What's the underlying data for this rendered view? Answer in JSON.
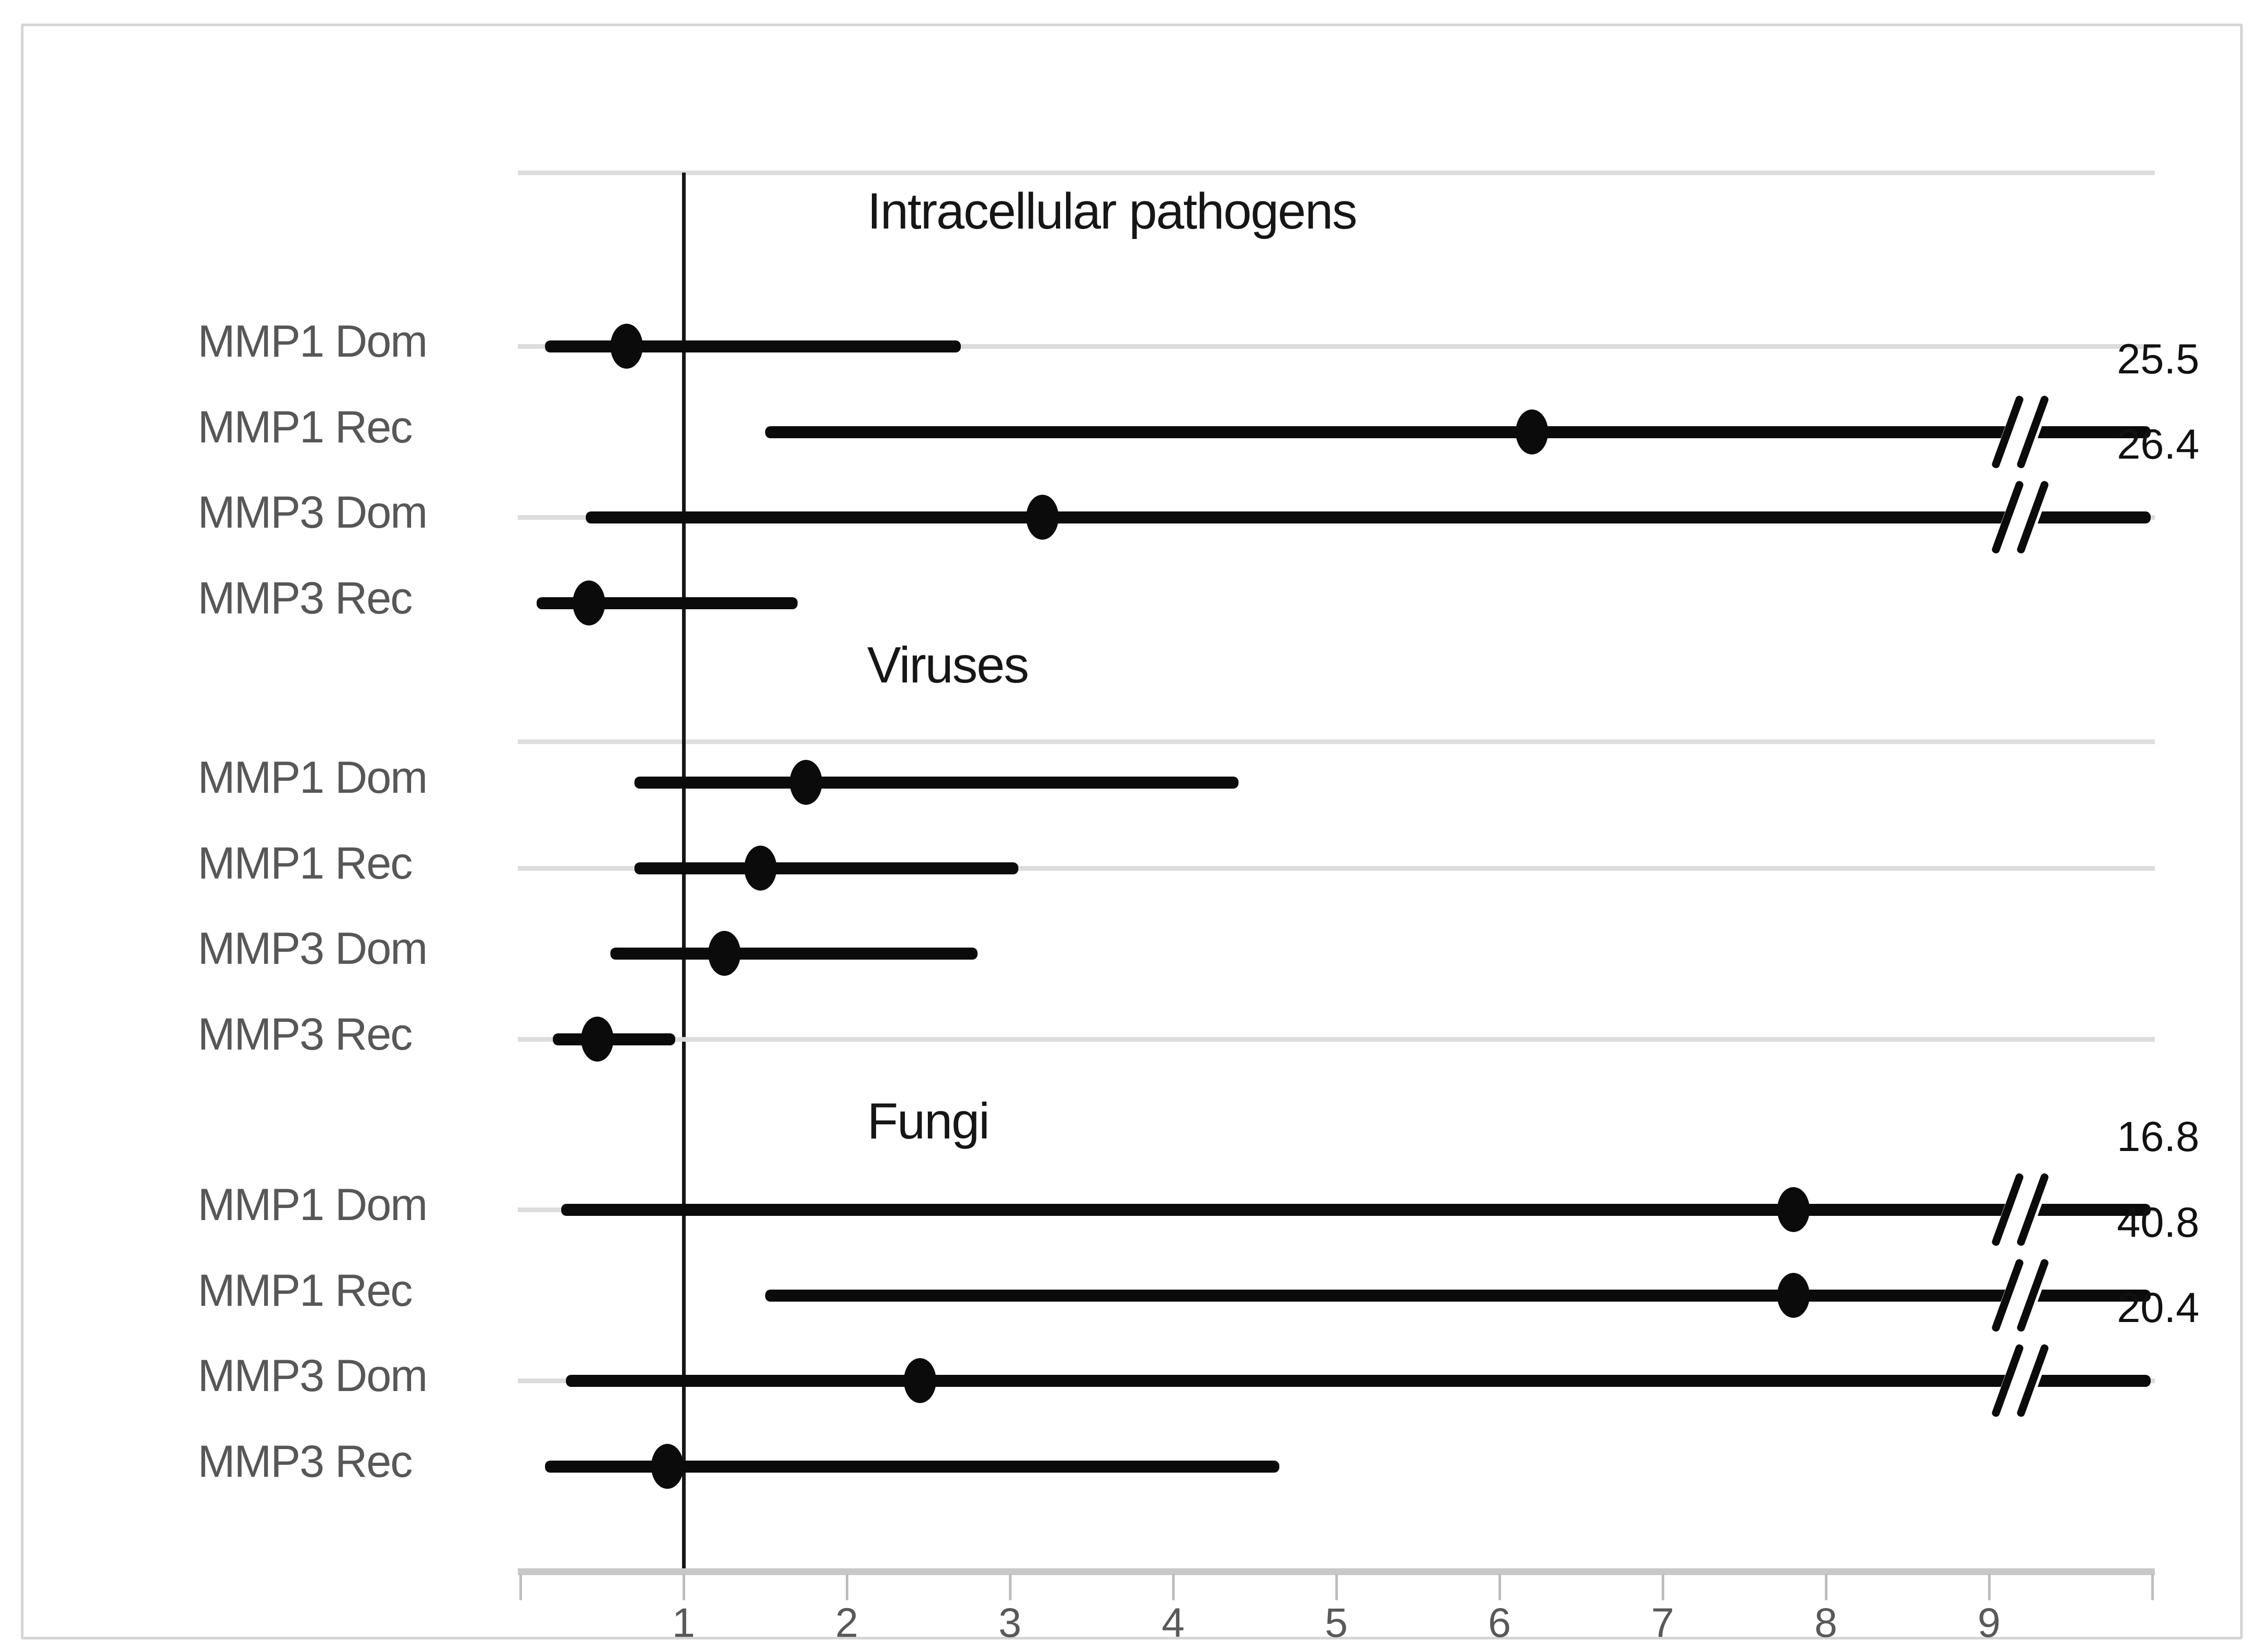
{
  "figure": {
    "background": "#ffffff",
    "border_color": "#d5d5d5",
    "accent_black": "#0b0b0b",
    "label_gray": "#575757",
    "grid_gray": "#dcdcdc",
    "axis_gray": "#c8c8c8"
  },
  "chart_data": {
    "type": "scatter",
    "subtype": "forest-plot-horizontal-ci",
    "title": "",
    "xlabel": "",
    "ylabel": "",
    "xlim": [
      0,
      10
    ],
    "x_ticks": [
      0,
      1,
      2,
      3,
      4,
      5,
      6,
      7,
      8,
      9,
      10
    ],
    "x_tick_labels": [
      "1",
      "2",
      "3",
      "4",
      "5",
      "6",
      "7",
      "8",
      "9"
    ],
    "reference_line_x": 1,
    "axis_break_x": 9.2,
    "grid": "partial-row-gridlines",
    "legend_position": "none",
    "sections": [
      {
        "title": "Intracellular pathogens",
        "rows": [
          {
            "label": "MMP1 Dom",
            "estimate": 0.65,
            "ci_low": 0.15,
            "ci_high": 2.7,
            "truncated": false,
            "ci_high_label": "",
            "gridline": true
          },
          {
            "label": "MMP1 Rec",
            "estimate": 6.2,
            "ci_low": 1.5,
            "ci_high": 25.5,
            "truncated": true,
            "ci_high_label": "25.5",
            "gridline": false
          },
          {
            "label": "MMP3 Dom",
            "estimate": 3.2,
            "ci_low": 0.4,
            "ci_high": 26.4,
            "truncated": true,
            "ci_high_label": "26.4",
            "gridline": true
          },
          {
            "label": "MMP3 Rec",
            "estimate": 0.42,
            "ci_low": 0.1,
            "ci_high": 1.7,
            "truncated": false,
            "ci_high_label": "",
            "gridline": false
          }
        ]
      },
      {
        "title": "Viruses",
        "rows": [
          {
            "label": "MMP1 Dom",
            "estimate": 1.75,
            "ci_low": 0.7,
            "ci_high": 4.4,
            "truncated": false,
            "ci_high_label": "",
            "gridline": false
          },
          {
            "label": "MMP1 Rec",
            "estimate": 1.47,
            "ci_low": 0.7,
            "ci_high": 3.05,
            "truncated": false,
            "ci_high_label": "",
            "gridline": true
          },
          {
            "label": "MMP3 Dom",
            "estimate": 1.25,
            "ci_low": 0.55,
            "ci_high": 2.8,
            "truncated": false,
            "ci_high_label": "",
            "gridline": false
          },
          {
            "label": "MMP3 Rec",
            "estimate": 0.47,
            "ci_low": 0.2,
            "ci_high": 0.95,
            "truncated": false,
            "ci_high_label": "",
            "gridline": true
          }
        ]
      },
      {
        "title": "Fungi",
        "rows": [
          {
            "label": "MMP1 Dom",
            "estimate": 7.8,
            "ci_low": 0.25,
            "ci_high": 16.8,
            "truncated": true,
            "ci_high_label": "16.8",
            "gridline": true
          },
          {
            "label": "MMP1 Rec",
            "estimate": 7.8,
            "ci_low": 1.5,
            "ci_high": 40.8,
            "truncated": true,
            "ci_high_label": "40.8",
            "gridline": false
          },
          {
            "label": "MMP3 Dom",
            "estimate": 2.45,
            "ci_low": 0.28,
            "ci_high": 20.4,
            "truncated": true,
            "ci_high_label": "20.4",
            "gridline": true
          },
          {
            "label": "MMP3 Rec",
            "estimate": 0.9,
            "ci_low": 0.15,
            "ci_high": 4.65,
            "truncated": false,
            "ci_high_label": "",
            "gridline": false
          }
        ]
      }
    ]
  }
}
